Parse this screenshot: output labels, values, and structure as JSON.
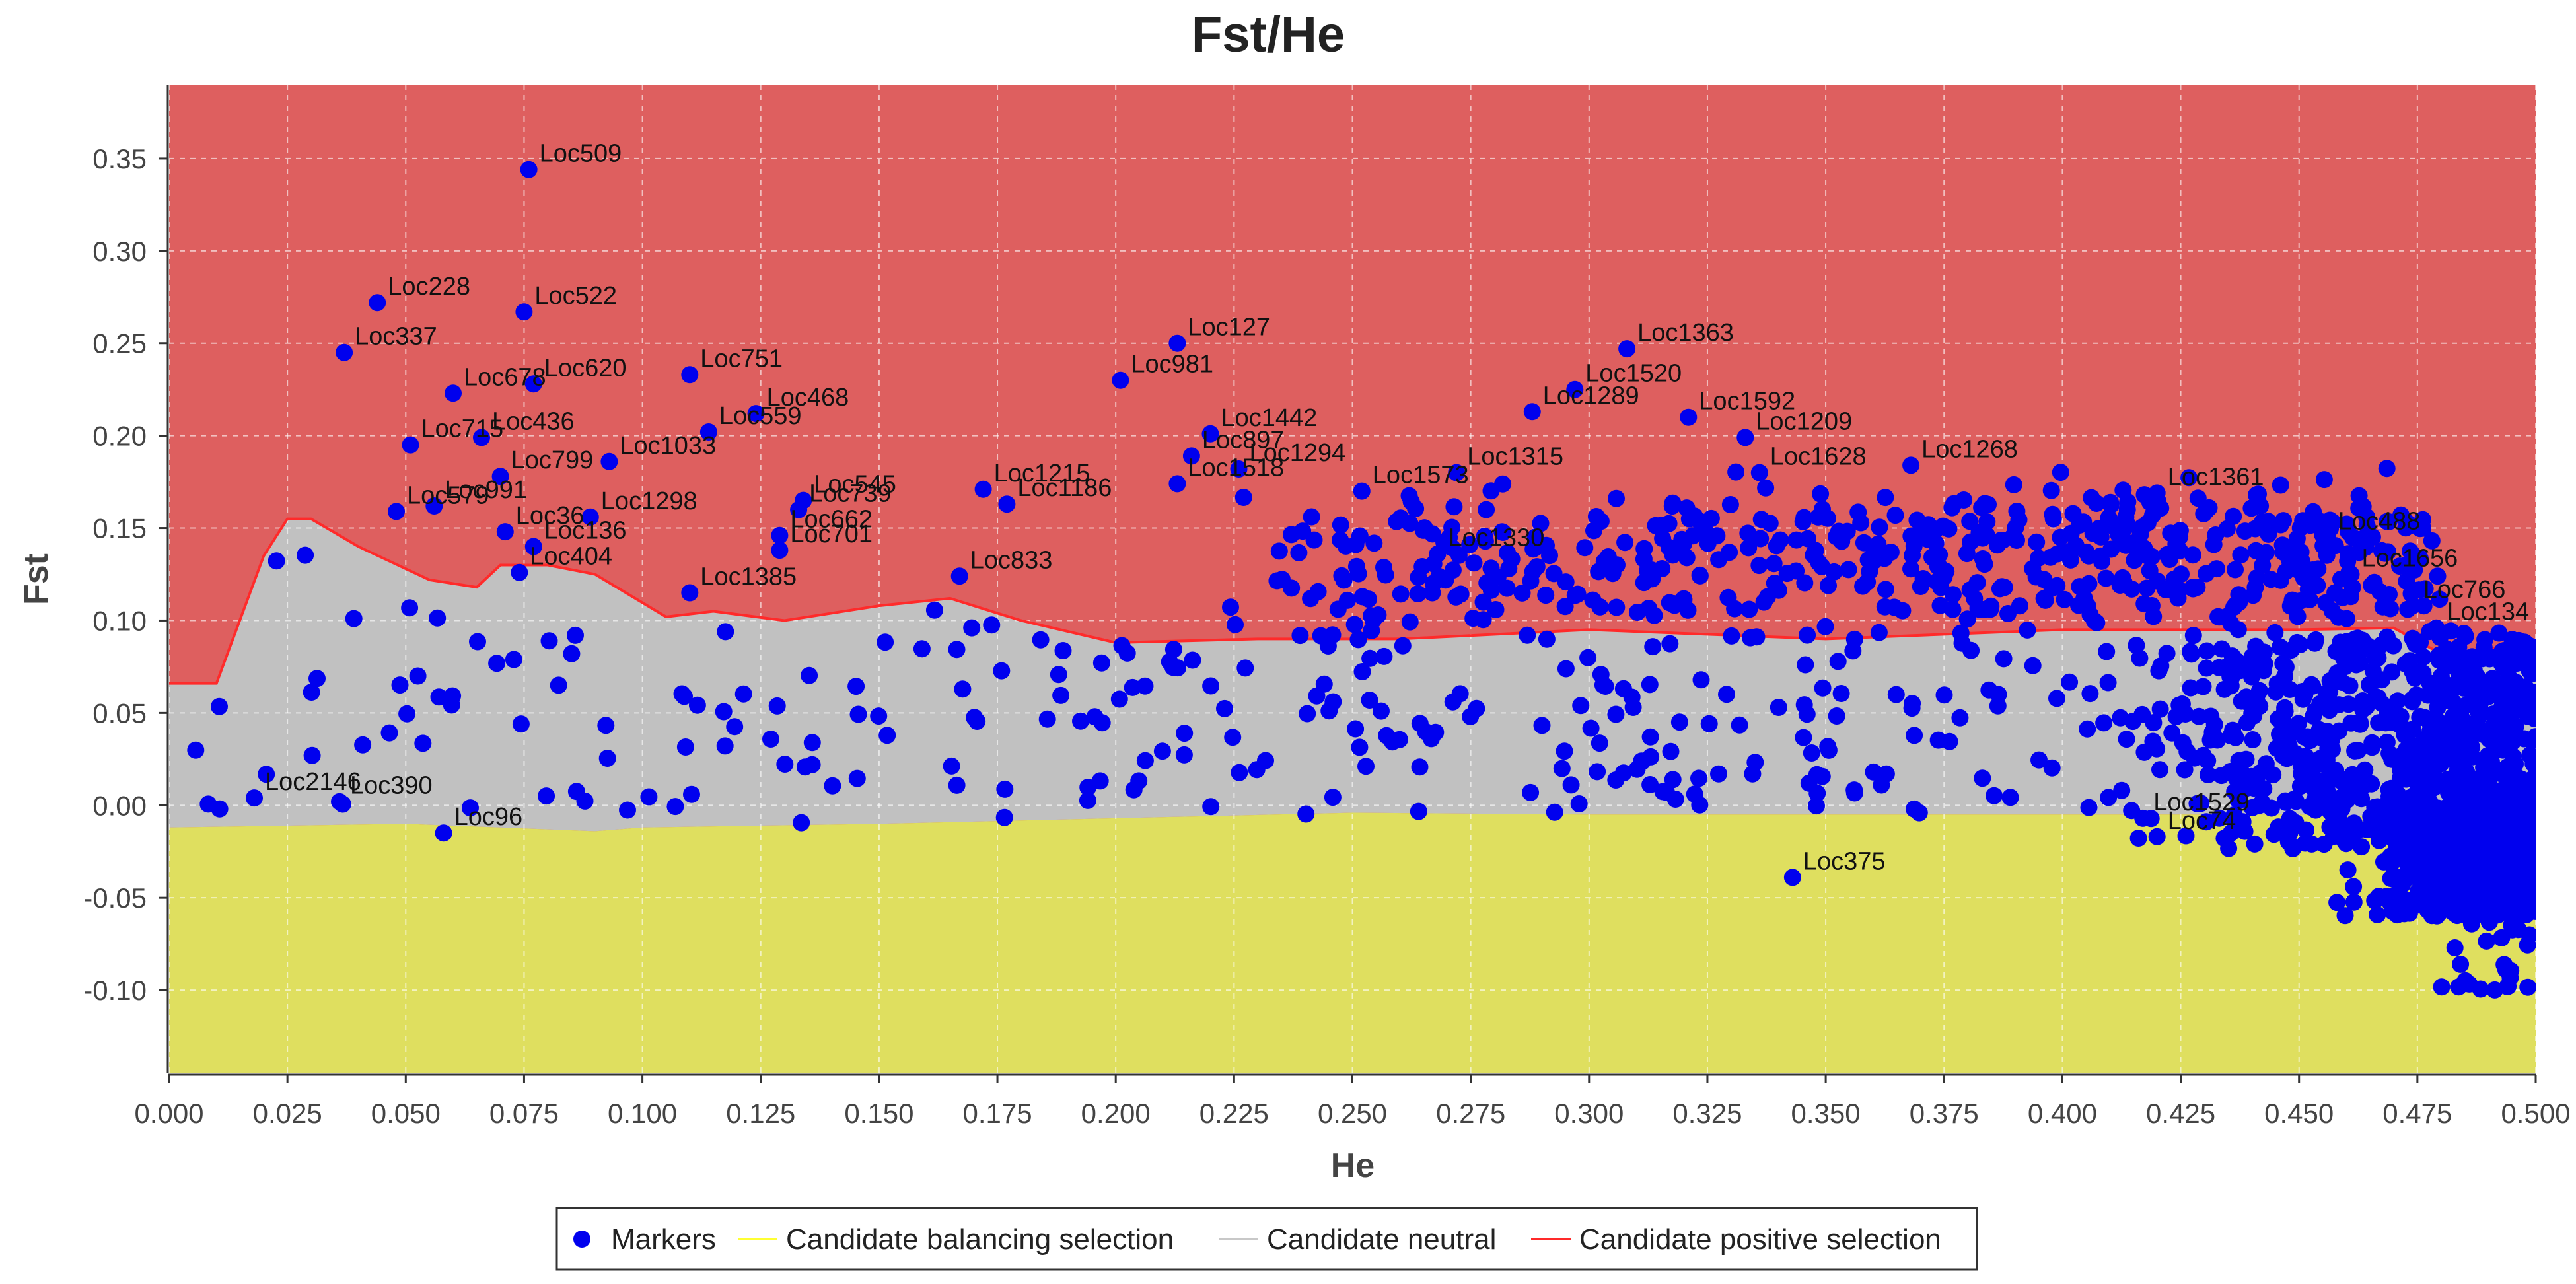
{
  "chart_data": {
    "type": "scatter",
    "title": "Fst/He",
    "xlabel": "He",
    "ylabel": "Fst",
    "xlim": [
      0.0,
      0.5
    ],
    "ylim": [
      -0.145,
      0.39
    ],
    "grid": true,
    "legend_position": "bottom",
    "x_ticks": [
      "0.000",
      "0.025",
      "0.050",
      "0.075",
      "0.100",
      "0.125",
      "0.150",
      "0.175",
      "0.200",
      "0.225",
      "0.250",
      "0.275",
      "0.300",
      "0.325",
      "0.350",
      "0.375",
      "0.400",
      "0.425",
      "0.450",
      "0.475",
      "0.500"
    ],
    "y_ticks": [
      "0.35",
      "0.30",
      "0.25",
      "0.20",
      "0.15",
      "0.10",
      "0.05",
      "0.00",
      "-0.05",
      "-0.10"
    ],
    "colors": {
      "positive_region": "#de5f5f",
      "neutral_region": "#c1c1c1",
      "balancing_region": "#dfdf5f",
      "positive_line": "#ff2a2a",
      "markers": "#0000ee"
    },
    "legend": [
      {
        "label": "Markers",
        "type": "marker",
        "color": "#0000ee"
      },
      {
        "label": "Candidate balancing selection",
        "type": "line",
        "color": "#ffff33"
      },
      {
        "label": "Candidate neutral",
        "type": "line",
        "color": "#c8c8c8"
      },
      {
        "label": "Candidate positive selection",
        "type": "line",
        "color": "#ff2a2a"
      }
    ],
    "upper_boundary": [
      [
        0.0,
        0.066
      ],
      [
        0.01,
        0.066
      ],
      [
        0.02,
        0.135
      ],
      [
        0.025,
        0.155
      ],
      [
        0.03,
        0.155
      ],
      [
        0.04,
        0.14
      ],
      [
        0.055,
        0.122
      ],
      [
        0.065,
        0.118
      ],
      [
        0.07,
        0.13
      ],
      [
        0.08,
        0.13
      ],
      [
        0.09,
        0.125
      ],
      [
        0.105,
        0.102
      ],
      [
        0.115,
        0.105
      ],
      [
        0.13,
        0.1
      ],
      [
        0.15,
        0.108
      ],
      [
        0.165,
        0.112
      ],
      [
        0.18,
        0.1
      ],
      [
        0.2,
        0.088
      ],
      [
        0.23,
        0.09
      ],
      [
        0.26,
        0.09
      ],
      [
        0.3,
        0.095
      ],
      [
        0.35,
        0.09
      ],
      [
        0.4,
        0.095
      ],
      [
        0.45,
        0.095
      ],
      [
        0.47,
        0.096
      ],
      [
        0.48,
        0.082
      ],
      [
        0.5,
        0.087
      ]
    ],
    "lower_boundary": [
      [
        0.0,
        -0.012
      ],
      [
        0.05,
        -0.01
      ],
      [
        0.09,
        -0.014
      ],
      [
        0.1,
        -0.012
      ],
      [
        0.15,
        -0.01
      ],
      [
        0.2,
        -0.007
      ],
      [
        0.25,
        -0.004
      ],
      [
        0.3,
        -0.005
      ],
      [
        0.35,
        -0.005
      ],
      [
        0.4,
        -0.005
      ],
      [
        0.45,
        -0.005
      ],
      [
        0.47,
        -0.006
      ],
      [
        0.5,
        -0.006
      ]
    ],
    "labeled_points": [
      {
        "name": "Loc509",
        "he": 0.076,
        "fst": 0.344
      },
      {
        "name": "Loc228",
        "he": 0.044,
        "fst": 0.272
      },
      {
        "name": "Loc522",
        "he": 0.075,
        "fst": 0.267
      },
      {
        "name": "Loc337",
        "he": 0.037,
        "fst": 0.245
      },
      {
        "name": "Loc678",
        "he": 0.06,
        "fst": 0.223
      },
      {
        "name": "Loc620",
        "he": 0.077,
        "fst": 0.228
      },
      {
        "name": "Loc751",
        "he": 0.11,
        "fst": 0.233
      },
      {
        "name": "Loc468",
        "he": 0.124,
        "fst": 0.212
      },
      {
        "name": "Loc559",
        "he": 0.114,
        "fst": 0.202
      },
      {
        "name": "Loc436",
        "he": 0.066,
        "fst": 0.199
      },
      {
        "name": "Loc715",
        "he": 0.051,
        "fst": 0.195
      },
      {
        "name": "Loc1033",
        "he": 0.093,
        "fst": 0.186
      },
      {
        "name": "Loc799",
        "he": 0.07,
        "fst": 0.178
      },
      {
        "name": "Loc579",
        "he": 0.048,
        "fst": 0.159
      },
      {
        "name": "Loc991",
        "he": 0.056,
        "fst": 0.162
      },
      {
        "name": "Loc1298",
        "he": 0.089,
        "fst": 0.156
      },
      {
        "name": "Loc36",
        "he": 0.071,
        "fst": 0.148
      },
      {
        "name": "Loc136",
        "he": 0.077,
        "fst": 0.14
      },
      {
        "name": "Loc404",
        "he": 0.074,
        "fst": 0.126
      },
      {
        "name": "Loc545",
        "he": 0.134,
        "fst": 0.165
      },
      {
        "name": "Loc739",
        "he": 0.133,
        "fst": 0.16
      },
      {
        "name": "Loc662",
        "he": 0.129,
        "fst": 0.146
      },
      {
        "name": "Loc701",
        "he": 0.129,
        "fst": 0.138
      },
      {
        "name": "Loc1385",
        "he": 0.11,
        "fst": 0.115
      },
      {
        "name": "Loc833",
        "he": 0.167,
        "fst": 0.124
      },
      {
        "name": "Loc127",
        "he": 0.213,
        "fst": 0.25
      },
      {
        "name": "Loc981",
        "he": 0.201,
        "fst": 0.23
      },
      {
        "name": "Loc1442",
        "he": 0.22,
        "fst": 0.201
      },
      {
        "name": "Loc897",
        "he": 0.216,
        "fst": 0.189
      },
      {
        "name": "Loc1294",
        "he": 0.226,
        "fst": 0.182
      },
      {
        "name": "Loc1215",
        "he": 0.172,
        "fst": 0.171
      },
      {
        "name": "Loc1186",
        "he": 0.177,
        "fst": 0.163
      },
      {
        "name": "Loc1518",
        "he": 0.213,
        "fst": 0.174
      },
      {
        "name": "Loc1363",
        "he": 0.308,
        "fst": 0.247
      },
      {
        "name": "Loc1520",
        "he": 0.297,
        "fst": 0.225
      },
      {
        "name": "Loc1289",
        "he": 0.288,
        "fst": 0.213
      },
      {
        "name": "Loc1592",
        "he": 0.321,
        "fst": 0.21
      },
      {
        "name": "Loc1209",
        "he": 0.333,
        "fst": 0.199
      },
      {
        "name": "Loc1628",
        "he": 0.336,
        "fst": 0.18
      },
      {
        "name": "Loc1268",
        "he": 0.368,
        "fst": 0.184
      },
      {
        "name": "Loc1361",
        "he": 0.42,
        "fst": 0.169
      },
      {
        "name": "Loc1315",
        "he": 0.272,
        "fst": 0.18
      },
      {
        "name": "Loc1573",
        "he": 0.252,
        "fst": 0.17
      },
      {
        "name": "Loc1330",
        "he": 0.268,
        "fst": 0.136
      },
      {
        "name": "Loc488",
        "he": 0.456,
        "fst": 0.145
      },
      {
        "name": "Loc766",
        "he": 0.474,
        "fst": 0.108
      },
      {
        "name": "Loc1656",
        "he": 0.461,
        "fst": 0.125
      },
      {
        "name": "Loc134",
        "he": 0.479,
        "fst": 0.096
      },
      {
        "name": "Loc375",
        "he": 0.343,
        "fst": -0.039
      },
      {
        "name": "Loc74",
        "he": 0.42,
        "fst": -0.017
      },
      {
        "name": "Loc1529",
        "he": 0.417,
        "fst": -0.007
      },
      {
        "name": "Loc96",
        "he": 0.058,
        "fst": -0.015
      },
      {
        "name": "Loc390",
        "he": 0.036,
        "fst": 0.002
      },
      {
        "name": "Loc2146",
        "he": 0.018,
        "fst": 0.004
      }
    ]
  }
}
